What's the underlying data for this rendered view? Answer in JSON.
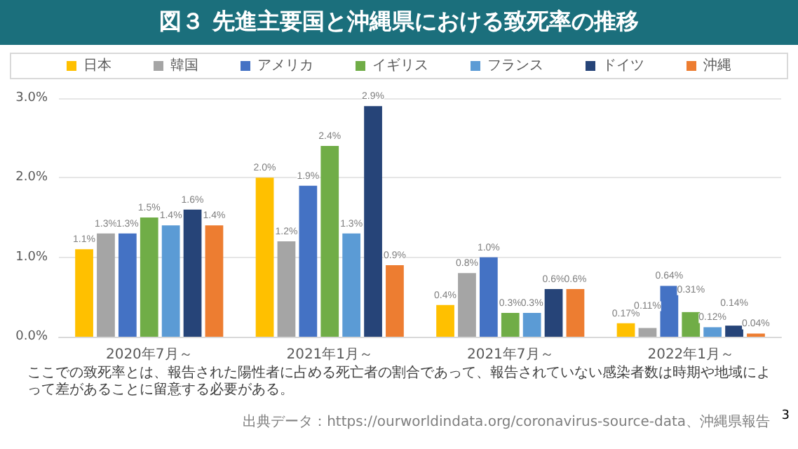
{
  "chart_data": {
    "type": "bar",
    "title": "図３ 先進主要国と沖縄県における致死率の推移",
    "categories": [
      "2020年7月～",
      "2021年1月～",
      "2021年7月～",
      "2022年1月～"
    ],
    "series": [
      {
        "name": "日本",
        "color": "#ffc000",
        "values": [
          1.1,
          2.0,
          0.4,
          0.17
        ],
        "value_labels": [
          "1.1%",
          "2.0%",
          "0.4%",
          "0.17%"
        ]
      },
      {
        "name": "韓国",
        "color": "#a5a5a5",
        "values": [
          1.3,
          1.2,
          0.8,
          0.11
        ],
        "value_labels": [
          "1.3%",
          "1.2%",
          "0.8%",
          "0.11%"
        ]
      },
      {
        "name": "アメリカ",
        "color": "#4472c4",
        "values": [
          1.3,
          1.9,
          1.0,
          0.64
        ],
        "value_labels": [
          "1.3%",
          "1.9%",
          "1.0%",
          "0.64%"
        ]
      },
      {
        "name": "イギリス",
        "color": "#70ad47",
        "values": [
          1.5,
          2.4,
          0.3,
          0.31
        ],
        "value_labels": [
          "1.5%",
          "2.4%",
          "0.3%",
          "0.31%"
        ]
      },
      {
        "name": "フランス",
        "color": "#5b9bd5",
        "values": [
          1.4,
          1.3,
          0.3,
          0.12
        ],
        "value_labels": [
          "1.4%",
          "1.3%",
          "0.3%",
          "0.12%"
        ]
      },
      {
        "name": "ドイツ",
        "color": "#264478",
        "values": [
          1.6,
          2.9,
          0.6,
          0.14
        ],
        "value_labels": [
          "1.6%",
          "2.9%",
          "0.6%",
          "0.14%"
        ]
      },
      {
        "name": "沖縄",
        "color": "#ed7d31",
        "values": [
          1.4,
          0.9,
          0.6,
          0.04
        ],
        "value_labels": [
          "1.4%",
          "0.9%",
          "0.6%",
          "0.04%"
        ]
      }
    ],
    "ylim": [
      0,
      3
    ],
    "yticks": [
      {
        "value": 0,
        "label": "0.0%"
      },
      {
        "value": 1,
        "label": "1.0%"
      },
      {
        "value": 2,
        "label": "2.0%"
      },
      {
        "value": 3,
        "label": "3.0%"
      }
    ],
    "grid": "y",
    "legend": "top",
    "annotations": [
      "ここでの致死率とは、報告された陽性者に占める死亡者の割合であって、報告されていない感染者数は時期や地域によって差があることに留意する必要がある。",
      "出典データ：https://ourworldindata.org/coronavirus-source-data、沖縄県報告",
      "3"
    ]
  }
}
